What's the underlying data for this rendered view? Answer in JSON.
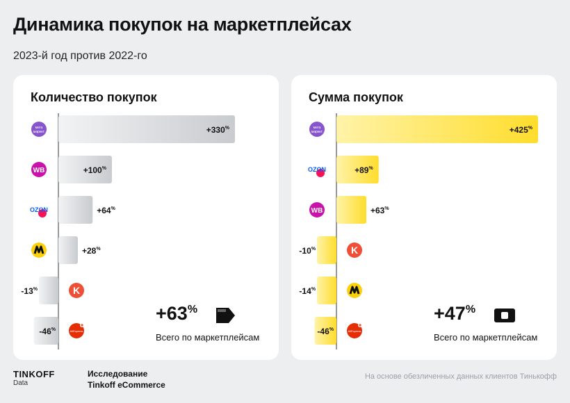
{
  "header": {
    "title": "Динамика покупок на маркетплейсах",
    "subtitle": "2023-й год против 2022-го"
  },
  "chart_data": [
    {
      "type": "bar",
      "title": "Количество покупок",
      "categories": [
        "мега маркет",
        "WB",
        "OZON",
        "Яндекс Маркет",
        "Kazan Express",
        "AliExpress"
      ],
      "values": [
        330,
        100,
        64,
        28,
        -13,
        -46
      ],
      "labels": [
        "+330",
        "+100",
        "+64",
        "+28",
        "-13",
        "-46"
      ],
      "unit": "%",
      "icons": [
        "megamarket-icon",
        "wb-icon",
        "ozon-icon",
        "yandex-market-icon",
        "kazanexpress-icon",
        "aliexpress-icon"
      ],
      "color": "#cfd2d5",
      "total_value": "+63",
      "total_label": "Всего по маркетплейсам",
      "total_icon": "arrow-icon"
    },
    {
      "type": "bar",
      "title": "Сумма покупок",
      "categories": [
        "мега маркет",
        "OZON",
        "WB",
        "Kazan Express",
        "Яндекс Маркет",
        "AliExpress"
      ],
      "values": [
        425,
        89,
        63,
        -10,
        -14,
        -46
      ],
      "labels": [
        "+425",
        "+89",
        "+63",
        "-10",
        "-14",
        "-46"
      ],
      "unit": "%",
      "icons": [
        "megamarket-icon",
        "ozon-icon",
        "wb-icon",
        "kazanexpress-icon",
        "yandex-market-icon",
        "aliexpress-icon"
      ],
      "color": "#ffdd2d",
      "total_value": "+47",
      "total_label": "Всего по маркетплейсам",
      "total_icon": "wallet-icon"
    }
  ],
  "icon_text": {
    "megamarket-icon": "мега маркет",
    "wb-icon": "WB",
    "ozon-icon": "OZON",
    "kazanexpress-icon": "K",
    "aliexpress-icon": "AliExpress"
  },
  "colors": {
    "megamarket": "#8654cc",
    "wb": "#cb11ab",
    "ozon": "#005bff",
    "yandex": "#fcd10a",
    "kazanexpress": "#f04f37",
    "aliexpress": "#e62e04"
  },
  "footer": {
    "logo": "TINKOFF",
    "logo_sub": "Data",
    "study_line1": "Исследование",
    "study_line2": "Tinkoff eCommerce",
    "note": "На основе обезличенных данных клиентов Тинькофф"
  }
}
